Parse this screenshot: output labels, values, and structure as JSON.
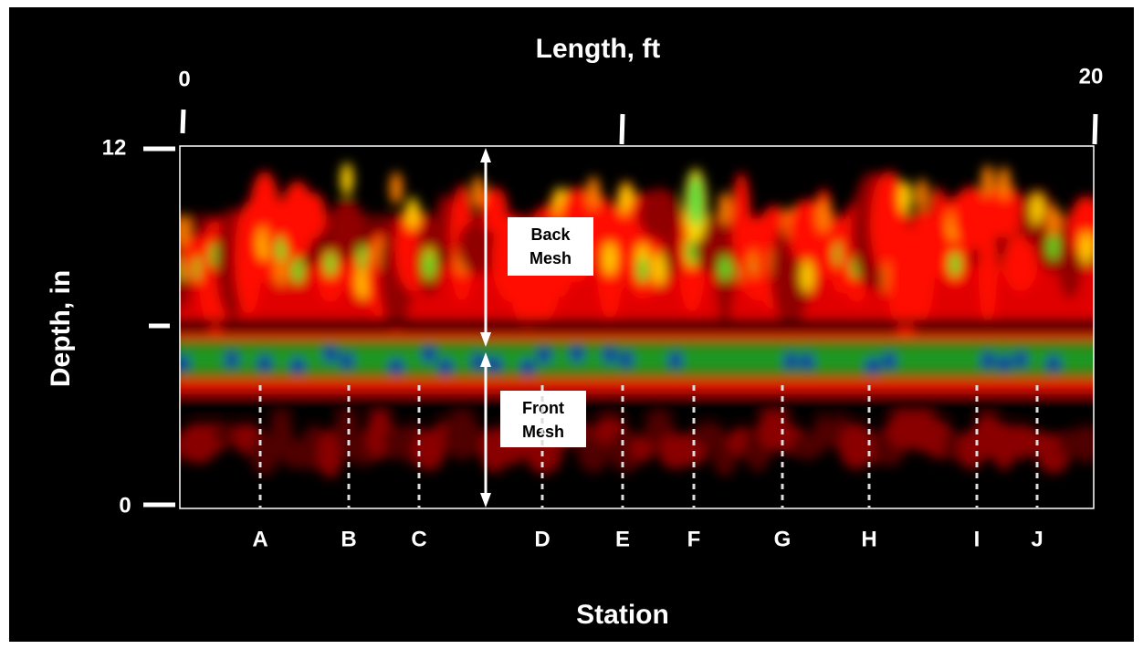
{
  "title": "Length, ft",
  "length_ticks": [
    "0",
    "20"
  ],
  "depth_axis": {
    "label": "Depth, in",
    "ticks": [
      "12",
      "0"
    ]
  },
  "annotations": {
    "back_mesh": [
      "Back",
      "Mesh"
    ],
    "front_mesh": [
      "Front",
      "Mesh"
    ]
  },
  "stations": [
    "A",
    "B",
    "C",
    "D",
    "E",
    "F",
    "G",
    "H",
    "I",
    "J"
  ],
  "x_label": "Station"
}
